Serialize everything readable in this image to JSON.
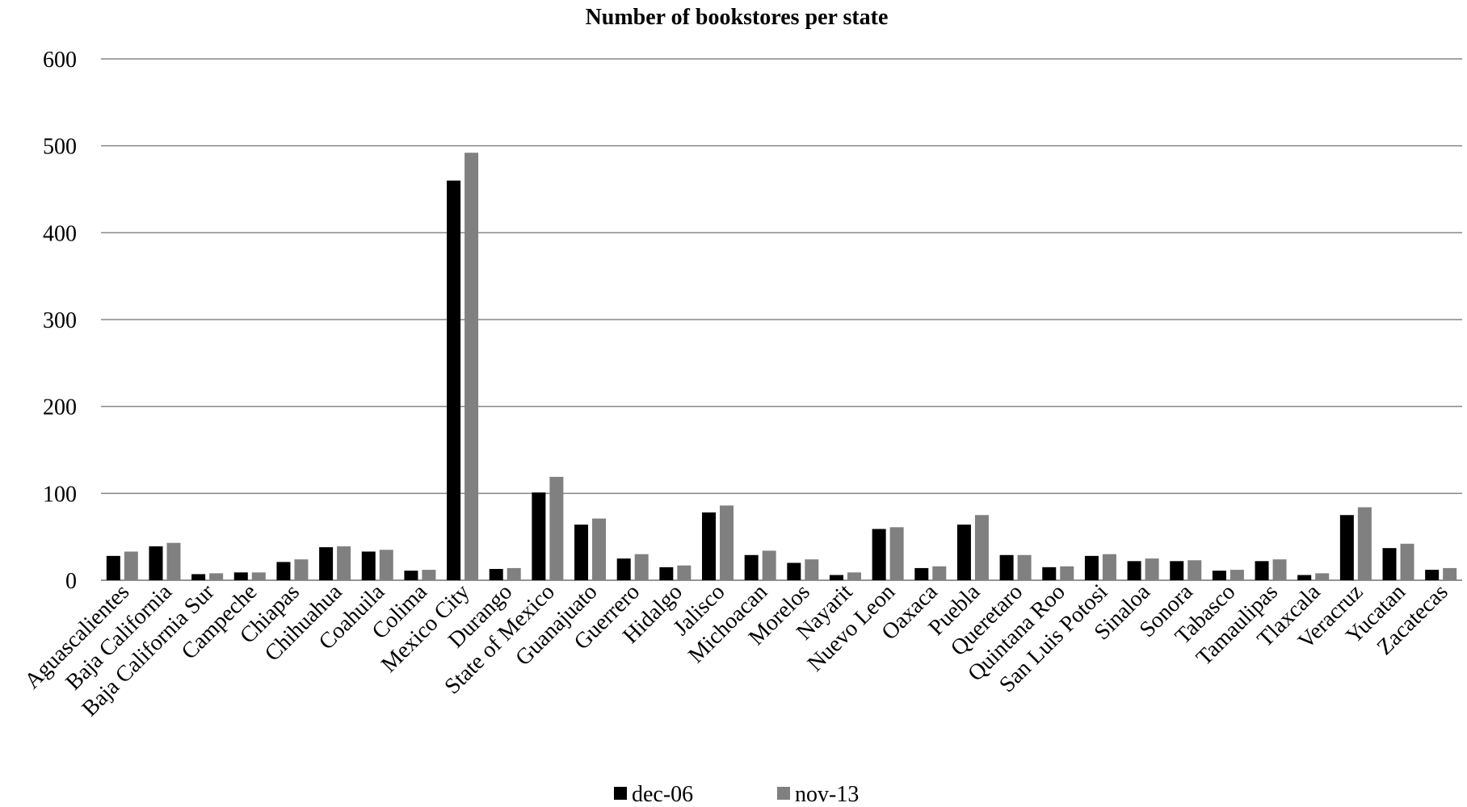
{
  "chart_data": {
    "type": "bar",
    "title": "Number of bookstores per state",
    "xlabel": "",
    "ylabel": "",
    "ylim": [
      0,
      600
    ],
    "yticks": [
      0,
      100,
      200,
      300,
      400,
      500,
      600
    ],
    "grid": true,
    "legend_position": "bottom",
    "categories": [
      "Aguascalientes",
      "Baja California",
      "Baja California Sur",
      "Campeche",
      "Chiapas",
      "Chihuahua",
      "Coahuila",
      "Colima",
      "Mexico City",
      "Durango",
      "State of Mexico",
      "Guanajuato",
      "Guerrero",
      "Hidalgo",
      "Jalisco",
      "Michoacan",
      "Morelos",
      "Nayarit",
      "Nuevo Leon",
      "Oaxaca",
      "Puebla",
      "Queretaro",
      "Quintana Roo",
      "San Luis Potosi",
      "Sinaloa",
      "Sonora",
      "Tabasco",
      "Tamaulipas",
      "Tlaxcala",
      "Veracruz",
      "Yucatan",
      "Zacatecas"
    ],
    "series": [
      {
        "name": "dec-06",
        "color": "#000000",
        "values": [
          28,
          39,
          7,
          9,
          21,
          38,
          33,
          11,
          460,
          13,
          101,
          64,
          25,
          15,
          78,
          29,
          20,
          6,
          59,
          14,
          64,
          29,
          15,
          28,
          22,
          22,
          11,
          22,
          6,
          75,
          37,
          12
        ]
      },
      {
        "name": "nov-13",
        "color": "#808080",
        "values": [
          33,
          43,
          8,
          9,
          24,
          39,
          35,
          12,
          492,
          14,
          119,
          71,
          30,
          17,
          86,
          34,
          24,
          9,
          61,
          16,
          75,
          29,
          16,
          30,
          25,
          23,
          12,
          24,
          8,
          84,
          42,
          14
        ]
      }
    ]
  }
}
